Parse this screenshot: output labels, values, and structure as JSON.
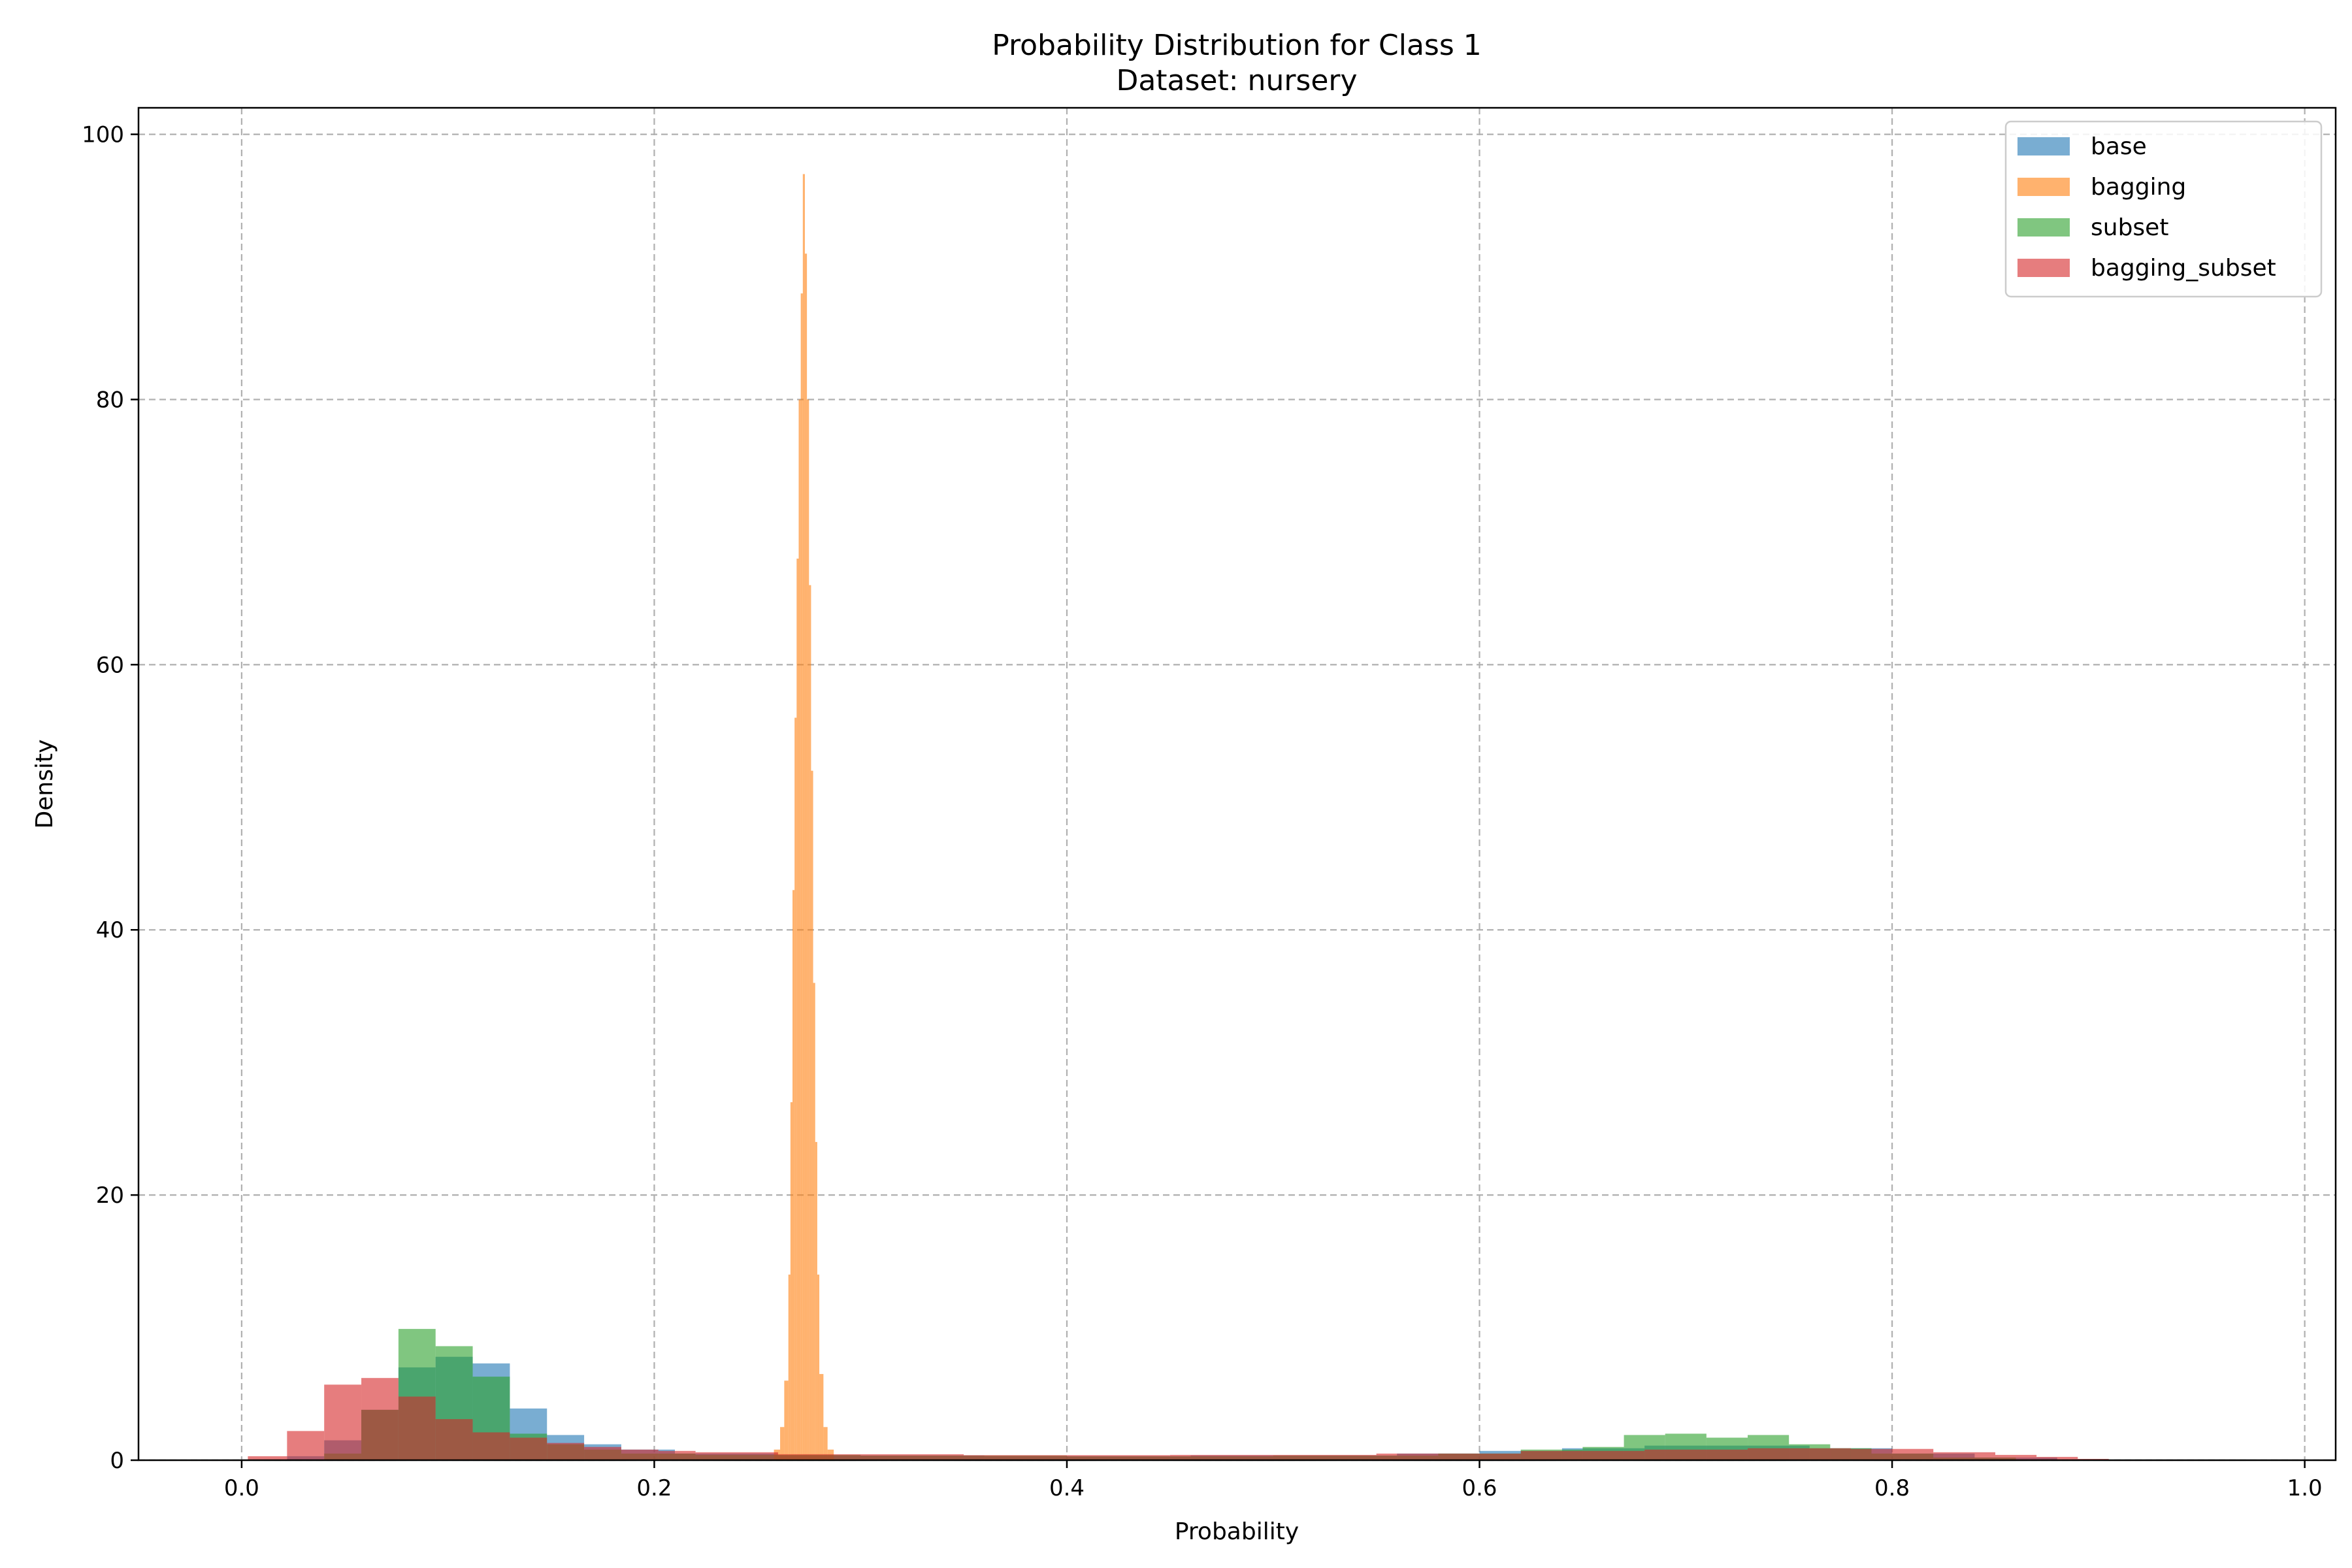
{
  "chart_data": {
    "type": "histogram",
    "title": "Probability Distribution for Class 1",
    "subtitle": "Dataset: nursery",
    "xlabel": "Probability",
    "ylabel": "Density",
    "xlim": [
      -0.05,
      1.015
    ],
    "ylim": [
      0,
      102
    ],
    "xticks": [
      0.0,
      0.2,
      0.4,
      0.6,
      0.8,
      1.0
    ],
    "xtick_labels": [
      "0.0",
      "0.2",
      "0.4",
      "0.6",
      "0.8",
      "1.0"
    ],
    "yticks": [
      0,
      20,
      40,
      60,
      80,
      100
    ],
    "ytick_labels": [
      "0",
      "20",
      "40",
      "60",
      "80",
      "100"
    ],
    "grid": true,
    "legend_position": "top-right",
    "series": [
      {
        "name": "base",
        "color": "#1f77b4",
        "alpha": 0.6,
        "bins": [
          [
            0.022,
            0.04,
            0.3
          ],
          [
            0.04,
            0.058,
            1.5
          ],
          [
            0.058,
            0.076,
            3.8
          ],
          [
            0.076,
            0.094,
            7.0
          ],
          [
            0.094,
            0.112,
            7.8
          ],
          [
            0.112,
            0.13,
            7.3
          ],
          [
            0.13,
            0.148,
            3.9
          ],
          [
            0.148,
            0.166,
            1.9
          ],
          [
            0.166,
            0.184,
            1.2
          ],
          [
            0.184,
            0.21,
            0.8
          ],
          [
            0.21,
            0.26,
            0.5
          ],
          [
            0.26,
            0.36,
            0.35
          ],
          [
            0.36,
            0.46,
            0.3
          ],
          [
            0.46,
            0.56,
            0.35
          ],
          [
            0.56,
            0.6,
            0.5
          ],
          [
            0.6,
            0.64,
            0.7
          ],
          [
            0.64,
            0.68,
            0.9
          ],
          [
            0.68,
            0.72,
            1.1
          ],
          [
            0.72,
            0.76,
            1.1
          ],
          [
            0.76,
            0.8,
            0.9
          ],
          [
            0.8,
            0.84,
            0.5
          ],
          [
            0.84,
            0.88,
            0.2
          ]
        ]
      },
      {
        "name": "bagging",
        "color": "#ff7f0e",
        "alpha": 0.6,
        "bins": [
          [
            0.258,
            0.261,
            0.8
          ],
          [
            0.261,
            0.263,
            2.5
          ],
          [
            0.263,
            0.265,
            6.0
          ],
          [
            0.265,
            0.266,
            14.0
          ],
          [
            0.266,
            0.267,
            27.0
          ],
          [
            0.267,
            0.268,
            43.0
          ],
          [
            0.268,
            0.269,
            56.0
          ],
          [
            0.269,
            0.27,
            68.0
          ],
          [
            0.27,
            0.271,
            80.0
          ],
          [
            0.271,
            0.272,
            88.0
          ],
          [
            0.272,
            0.273,
            97.0
          ],
          [
            0.273,
            0.274,
            91.0
          ],
          [
            0.274,
            0.275,
            80.0
          ],
          [
            0.275,
            0.276,
            66.0
          ],
          [
            0.276,
            0.277,
            52.0
          ],
          [
            0.277,
            0.278,
            36.0
          ],
          [
            0.278,
            0.279,
            24.0
          ],
          [
            0.279,
            0.28,
            14.0
          ],
          [
            0.28,
            0.282,
            6.5
          ],
          [
            0.282,
            0.284,
            2.5
          ],
          [
            0.284,
            0.287,
            0.8
          ]
        ]
      },
      {
        "name": "subset",
        "color": "#2ca02c",
        "alpha": 0.6,
        "bins": [
          [
            0.04,
            0.058,
            0.5
          ],
          [
            0.058,
            0.076,
            3.8
          ],
          [
            0.076,
            0.094,
            9.9
          ],
          [
            0.094,
            0.112,
            8.6
          ],
          [
            0.112,
            0.13,
            6.3
          ],
          [
            0.13,
            0.148,
            2.0
          ],
          [
            0.148,
            0.166,
            1.2
          ],
          [
            0.166,
            0.184,
            0.8
          ],
          [
            0.184,
            0.22,
            0.5
          ],
          [
            0.22,
            0.3,
            0.4
          ],
          [
            0.3,
            0.4,
            0.35
          ],
          [
            0.4,
            0.5,
            0.3
          ],
          [
            0.5,
            0.58,
            0.35
          ],
          [
            0.58,
            0.62,
            0.5
          ],
          [
            0.62,
            0.65,
            0.8
          ],
          [
            0.65,
            0.67,
            1.0
          ],
          [
            0.67,
            0.69,
            1.9
          ],
          [
            0.69,
            0.71,
            2.0
          ],
          [
            0.71,
            0.73,
            1.7
          ],
          [
            0.73,
            0.75,
            1.9
          ],
          [
            0.75,
            0.77,
            1.2
          ],
          [
            0.77,
            0.79,
            0.9
          ],
          [
            0.79,
            0.82,
            0.5
          ],
          [
            0.82,
            0.86,
            0.2
          ]
        ]
      },
      {
        "name": "bagging_subset",
        "color": "#d62728",
        "alpha": 0.6,
        "bins": [
          [
            0.003,
            0.022,
            0.3
          ],
          [
            0.022,
            0.04,
            2.2
          ],
          [
            0.04,
            0.058,
            5.7
          ],
          [
            0.058,
            0.076,
            6.2
          ],
          [
            0.076,
            0.094,
            4.8
          ],
          [
            0.094,
            0.112,
            3.1
          ],
          [
            0.112,
            0.13,
            2.1
          ],
          [
            0.13,
            0.148,
            1.7
          ],
          [
            0.148,
            0.166,
            1.3
          ],
          [
            0.166,
            0.184,
            1.0
          ],
          [
            0.184,
            0.202,
            0.8
          ],
          [
            0.202,
            0.22,
            0.7
          ],
          [
            0.22,
            0.26,
            0.6
          ],
          [
            0.26,
            0.35,
            0.45
          ],
          [
            0.35,
            0.45,
            0.38
          ],
          [
            0.45,
            0.55,
            0.4
          ],
          [
            0.55,
            0.62,
            0.5
          ],
          [
            0.62,
            0.68,
            0.7
          ],
          [
            0.68,
            0.73,
            0.8
          ],
          [
            0.73,
            0.78,
            0.9
          ],
          [
            0.78,
            0.82,
            0.85
          ],
          [
            0.82,
            0.85,
            0.6
          ],
          [
            0.85,
            0.87,
            0.4
          ],
          [
            0.87,
            0.89,
            0.25
          ],
          [
            0.89,
            0.905,
            0.1
          ]
        ]
      }
    ]
  }
}
